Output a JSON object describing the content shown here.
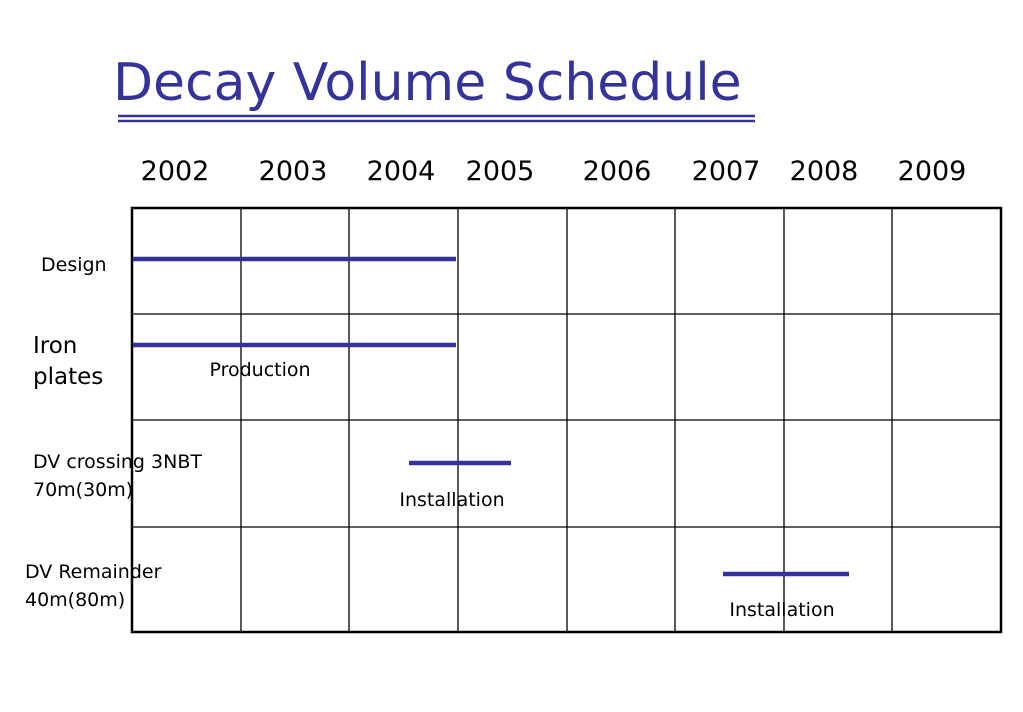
{
  "title": "Decay Volume Schedule",
  "years": [
    "2002",
    "2003",
    "2004",
    "2005",
    "2006",
    "2007",
    "2008",
    "2009"
  ],
  "rows": [
    {
      "label": [
        "Design"
      ]
    },
    {
      "label": [
        "Iron",
        "plates"
      ],
      "note": "Production"
    },
    {
      "label": [
        "DV crossing 3NBT",
        "70m(30m)"
      ],
      "note": "Installation"
    },
    {
      "label": [
        "DV Remainder",
        "40m(80m)"
      ],
      "note": "Installation"
    }
  ]
}
